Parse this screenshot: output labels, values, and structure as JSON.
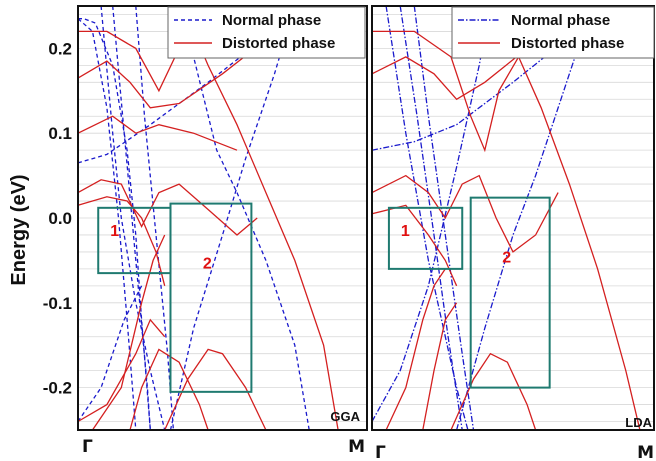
{
  "chart_data": [
    {
      "type": "line",
      "panel_label": "GGA",
      "ylabel": "Energy (eV)",
      "ylim": [
        -0.25,
        0.25
      ],
      "yticks": [
        0.2,
        0.1,
        0.0,
        -0.1,
        -0.2
      ],
      "ytick_labels": [
        "0.2",
        "0.1",
        "0.0",
        "-0.1",
        "-0.2"
      ],
      "xlim": [
        0,
        1
      ],
      "xticks": [
        0,
        1
      ],
      "xtick_labels": [
        "Γ",
        "M"
      ],
      "grid": "horizontal",
      "legend_position": "top-right",
      "series": [
        {
          "name": "Normal phase",
          "color": "#1a1acc",
          "dash": "dashed",
          "lines": [
            [
              [
                0,
                0.235
              ],
              [
                0.02,
                0.235
              ],
              [
                0.06,
                0.23
              ],
              [
                0.12,
                0.18
              ],
              [
                0.17,
                0.08
              ],
              [
                0.2,
                -0.02
              ],
              [
                0.22,
                -0.12
              ],
              [
                0.25,
                -0.25
              ]
            ],
            [
              [
                0,
                0.235
              ],
              [
                0.05,
                0.22
              ],
              [
                0.1,
                0.13
              ],
              [
                0.14,
                0.0
              ],
              [
                0.17,
                -0.12
              ],
              [
                0.2,
                -0.25
              ]
            ],
            [
              [
                0.12,
                0.25
              ],
              [
                0.16,
                0.1
              ],
              [
                0.2,
                -0.05
              ],
              [
                0.24,
                -0.2
              ],
              [
                0.25,
                -0.25
              ]
            ],
            [
              [
                0.2,
                0.25
              ],
              [
                0.23,
                0.12
              ],
              [
                0.27,
                -0.02
              ],
              [
                0.31,
                -0.16
              ],
              [
                0.33,
                -0.25
              ]
            ],
            [
              [
                0,
                0.065
              ],
              [
                0.1,
                0.075
              ],
              [
                0.25,
                0.11
              ],
              [
                0.45,
                0.16
              ],
              [
                0.6,
                0.2
              ],
              [
                0.7,
                0.23
              ],
              [
                0.78,
                0.25
              ]
            ],
            [
              [
                0.32,
                -0.25
              ],
              [
                0.4,
                -0.13
              ],
              [
                0.5,
                -0.02
              ],
              [
                0.58,
                0.07
              ],
              [
                0.68,
                0.17
              ],
              [
                0.75,
                0.25
              ]
            ],
            [
              [
                0.35,
                0.25
              ],
              [
                0.4,
                0.19
              ],
              [
                0.48,
                0.08
              ],
              [
                0.55,
                0.03
              ],
              [
                0.65,
                -0.05
              ],
              [
                0.75,
                -0.15
              ],
              [
                0.8,
                -0.25
              ]
            ],
            [
              [
                0.08,
                0.25
              ],
              [
                0.12,
                0.1
              ],
              [
                0.15,
                0.0
              ],
              [
                0.2,
                -0.1
              ],
              [
                0.25,
                -0.18
              ],
              [
                0.3,
                -0.25
              ]
            ],
            [
              [
                0,
                -0.24
              ],
              [
                0.08,
                -0.2
              ],
              [
                0.16,
                -0.12
              ],
              [
                0.22,
                -0.08
              ]
            ]
          ]
        },
        {
          "name": "Distorted phase",
          "color": "#d42020",
          "dash": "solid",
          "lines": [
            [
              [
                0,
                0.22
              ],
              [
                0.1,
                0.22
              ],
              [
                0.2,
                0.2
              ],
              [
                0.28,
                0.15
              ],
              [
                0.35,
                0.2
              ],
              [
                0.4,
                0.22
              ],
              [
                0.45,
                0.18
              ],
              [
                0.55,
                0.11
              ],
              [
                0.65,
                0.03
              ],
              [
                0.75,
                -0.05
              ],
              [
                0.85,
                -0.15
              ],
              [
                0.9,
                -0.25
              ]
            ],
            [
              [
                0,
                0.165
              ],
              [
                0.1,
                0.185
              ],
              [
                0.18,
                0.16
              ],
              [
                0.25,
                0.13
              ],
              [
                0.35,
                0.135
              ],
              [
                0.5,
                0.17
              ],
              [
                0.65,
                0.21
              ],
              [
                0.75,
                0.25
              ]
            ],
            [
              [
                0,
                0.1
              ],
              [
                0.12,
                0.12
              ],
              [
                0.2,
                0.1
              ],
              [
                0.28,
                0.11
              ],
              [
                0.4,
                0.1
              ],
              [
                0.55,
                0.08
              ]
            ],
            [
              [
                0,
                0.03
              ],
              [
                0.08,
                0.045
              ],
              [
                0.15,
                0.04
              ],
              [
                0.22,
                -0.01
              ],
              [
                0.28,
                0.03
              ],
              [
                0.35,
                0.04
              ],
              [
                0.45,
                0.01
              ],
              [
                0.55,
                -0.02
              ],
              [
                0.62,
                0.0
              ]
            ],
            [
              [
                0,
                0.015
              ],
              [
                0.1,
                0.025
              ],
              [
                0.17,
                0.02
              ],
              [
                0.22,
                0.0
              ],
              [
                0.27,
                -0.04
              ],
              [
                0.3,
                -0.08
              ]
            ],
            [
              [
                0.3,
                -0.25
              ],
              [
                0.38,
                -0.19
              ],
              [
                0.45,
                -0.155
              ],
              [
                0.5,
                -0.16
              ],
              [
                0.58,
                -0.2
              ],
              [
                0.65,
                -0.25
              ]
            ],
            [
              [
                0.18,
                -0.25
              ],
              [
                0.22,
                -0.2
              ],
              [
                0.28,
                -0.155
              ],
              [
                0.35,
                -0.17
              ],
              [
                0.42,
                -0.22
              ],
              [
                0.45,
                -0.25
              ]
            ],
            [
              [
                0,
                -0.24
              ],
              [
                0.1,
                -0.22
              ],
              [
                0.2,
                -0.16
              ],
              [
                0.25,
                -0.12
              ],
              [
                0.3,
                -0.14
              ]
            ],
            [
              [
                0.05,
                -0.25
              ],
              [
                0.15,
                -0.2
              ],
              [
                0.22,
                -0.1
              ],
              [
                0.26,
                -0.05
              ],
              [
                0.3,
                -0.02
              ]
            ]
          ]
        }
      ],
      "annotations": [
        {
          "label": "1",
          "x_range": [
            0.07,
            0.32
          ],
          "y_range": [
            -0.065,
            0.012
          ]
        },
        {
          "label": "2",
          "x_range": [
            0.32,
            0.6
          ],
          "y_range": [
            -0.205,
            0.017
          ]
        }
      ]
    },
    {
      "type": "line",
      "panel_label": "LDA",
      "ylim": [
        -0.25,
        0.25
      ],
      "xlim": [
        0,
        1
      ],
      "xticks": [
        0,
        1
      ],
      "xtick_labels": [
        "Γ",
        "M"
      ],
      "grid": "horizontal",
      "legend_position": "top-right",
      "series": [
        {
          "name": "Normal phase",
          "color": "#1a1acc",
          "dash": "dash-dot",
          "lines": [
            [
              [
                0.1,
                0.25
              ],
              [
                0.16,
                0.12
              ],
              [
                0.22,
                -0.02
              ],
              [
                0.27,
                -0.14
              ],
              [
                0.32,
                -0.25
              ]
            ],
            [
              [
                0.15,
                0.25
              ],
              [
                0.2,
                0.12
              ],
              [
                0.26,
                -0.02
              ],
              [
                0.32,
                -0.16
              ],
              [
                0.36,
                -0.25
              ]
            ],
            [
              [
                0,
                0.08
              ],
              [
                0.15,
                0.09
              ],
              [
                0.3,
                0.11
              ],
              [
                0.5,
                0.16
              ],
              [
                0.65,
                0.2
              ],
              [
                0.75,
                0.23
              ],
              [
                0.82,
                0.25
              ]
            ],
            [
              [
                0.3,
                -0.25
              ],
              [
                0.4,
                -0.13
              ],
              [
                0.5,
                -0.02
              ],
              [
                0.58,
                0.05
              ],
              [
                0.7,
                0.17
              ],
              [
                0.78,
                0.25
              ]
            ],
            [
              [
                0,
                -0.24
              ],
              [
                0.1,
                -0.18
              ],
              [
                0.2,
                -0.08
              ],
              [
                0.3,
                0.06
              ],
              [
                0.38,
                0.18
              ],
              [
                0.42,
                0.25
              ]
            ],
            [
              [
                0.05,
                0.25
              ],
              [
                0.12,
                0.1
              ],
              [
                0.2,
                -0.05
              ],
              [
                0.3,
                -0.2
              ],
              [
                0.34,
                -0.25
              ]
            ]
          ]
        },
        {
          "name": "Distorted phase",
          "color": "#d42020",
          "dash": "solid",
          "lines": [
            [
              [
                0,
                0.22
              ],
              [
                0.15,
                0.22
              ],
              [
                0.28,
                0.19
              ],
              [
                0.35,
                0.12
              ],
              [
                0.4,
                0.08
              ],
              [
                0.45,
                0.15
              ],
              [
                0.52,
                0.19
              ],
              [
                0.6,
                0.13
              ],
              [
                0.7,
                0.04
              ],
              [
                0.8,
                -0.06
              ],
              [
                0.9,
                -0.18
              ],
              [
                0.95,
                -0.25
              ]
            ],
            [
              [
                0,
                0.17
              ],
              [
                0.12,
                0.19
              ],
              [
                0.22,
                0.17
              ],
              [
                0.3,
                0.14
              ],
              [
                0.4,
                0.16
              ],
              [
                0.55,
                0.2
              ],
              [
                0.68,
                0.24
              ],
              [
                0.72,
                0.25
              ]
            ],
            [
              [
                0,
                0.03
              ],
              [
                0.12,
                0.05
              ],
              [
                0.2,
                0.03
              ],
              [
                0.26,
                0.0
              ],
              [
                0.32,
                0.04
              ],
              [
                0.38,
                0.05
              ],
              [
                0.44,
                0.0
              ],
              [
                0.5,
                -0.04
              ],
              [
                0.58,
                -0.02
              ],
              [
                0.66,
                0.03
              ]
            ],
            [
              [
                0,
                0.005
              ],
              [
                0.12,
                0.015
              ],
              [
                0.2,
                -0.02
              ],
              [
                0.26,
                -0.05
              ],
              [
                0.3,
                -0.08
              ]
            ],
            [
              [
                0.28,
                -0.25
              ],
              [
                0.36,
                -0.19
              ],
              [
                0.42,
                -0.16
              ],
              [
                0.48,
                -0.17
              ],
              [
                0.55,
                -0.22
              ],
              [
                0.58,
                -0.25
              ]
            ],
            [
              [
                0.18,
                -0.25
              ],
              [
                0.22,
                -0.18
              ],
              [
                0.26,
                -0.12
              ],
              [
                0.3,
                -0.1
              ]
            ],
            [
              [
                0.05,
                -0.25
              ],
              [
                0.12,
                -0.2
              ],
              [
                0.18,
                -0.12
              ],
              [
                0.22,
                -0.08
              ],
              [
                0.26,
                -0.06
              ]
            ]
          ]
        }
      ],
      "annotations": [
        {
          "label": "1",
          "x_range": [
            0.06,
            0.32
          ],
          "y_range": [
            -0.06,
            0.012
          ]
        },
        {
          "label": "2",
          "x_range": [
            0.35,
            0.63
          ],
          "y_range": [
            -0.2,
            0.024
          ]
        }
      ]
    }
  ]
}
